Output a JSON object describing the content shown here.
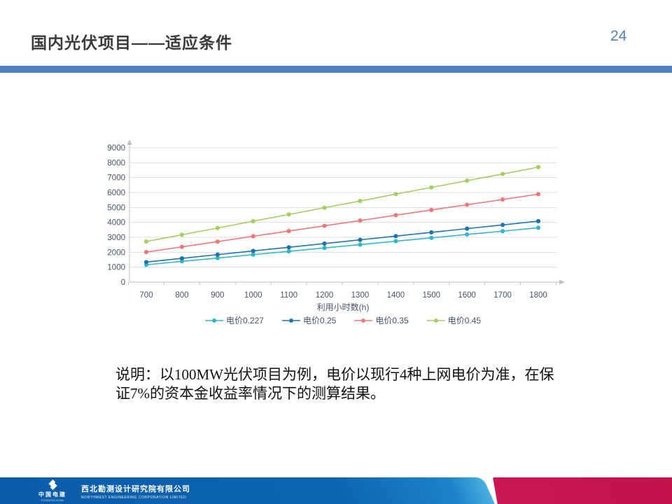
{
  "header": {
    "title": "国内光伏项目——适应条件",
    "page_number": "24",
    "accent_color": "#4e81bd"
  },
  "chart_data": {
    "type": "line",
    "x": [
      700,
      800,
      900,
      1000,
      1100,
      1200,
      1300,
      1400,
      1500,
      1600,
      1700,
      1800
    ],
    "xlabel": "利用小时数(h)",
    "ylim": [
      0,
      9000
    ],
    "ytick_step": 1000,
    "grid": true,
    "legend_position": "bottom",
    "axis_color": "#bfbfbf",
    "grid_color": "#dcdcdc",
    "tick_text_color": "#44546a",
    "series": [
      {
        "name": "电价0.227",
        "color": "#31b7c9",
        "values": [
          1160,
          1390,
          1610,
          1840,
          2060,
          2290,
          2510,
          2740,
          2960,
          3190,
          3410,
          3640
        ]
      },
      {
        "name": "电价0.25",
        "color": "#2173ae",
        "values": [
          1340,
          1590,
          1840,
          2090,
          2330,
          2580,
          2830,
          3080,
          3330,
          3580,
          3830,
          4080
        ]
      },
      {
        "name": "电价0.35",
        "color": "#ef767a",
        "values": [
          2010,
          2360,
          2710,
          3070,
          3420,
          3770,
          4120,
          4480,
          4830,
          5180,
          5530,
          5890
        ]
      },
      {
        "name": "电价0.45",
        "color": "#a5cd61",
        "values": [
          2720,
          3170,
          3620,
          4080,
          4530,
          4980,
          5430,
          5890,
          6340,
          6790,
          7240,
          7700
        ]
      }
    ]
  },
  "note": {
    "line1": "说明：以100MW光伏项目为例，电价以现行4种上网电价为准，在保",
    "line2": "证7%的资本金收益率情况下的测算结果。"
  },
  "footer": {
    "logo_cn": "中国电建",
    "logo_en": "POWERCHINA",
    "company_cn": "西北勘测设计研究院有限公司",
    "company_en": "NORTHWEST ENGINEERING CORPORATION LIMITED",
    "blue_color": "#0b5ca8",
    "red_color": "#c5124f"
  }
}
